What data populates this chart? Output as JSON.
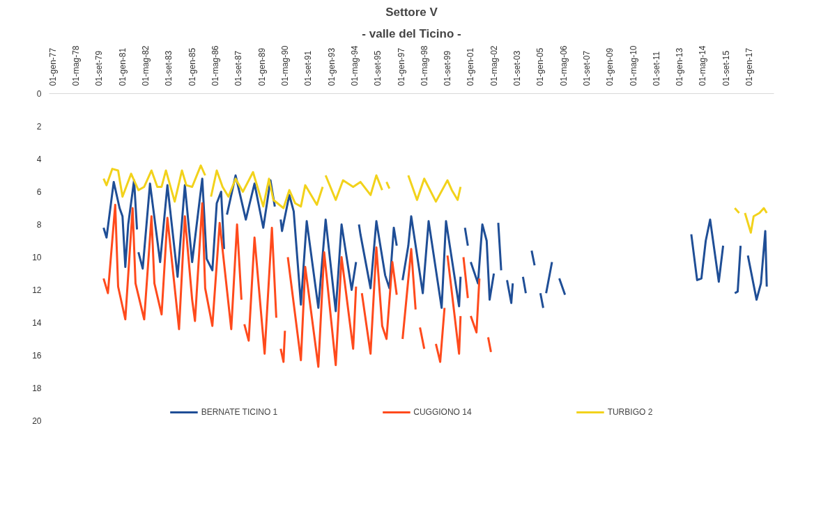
{
  "chart_data": {
    "type": "line",
    "title": "Settore V",
    "subtitle": "- valle del Ticino -",
    "xlim": [
      "1976-10-15",
      "2018-06-01"
    ],
    "xticks": [
      {
        "value": "1977-01-01",
        "label": "01-gen-77"
      },
      {
        "value": "1978-05-01",
        "label": "01-mag-78"
      },
      {
        "value": "1979-09-01",
        "label": "01-set-79"
      },
      {
        "value": "1981-01-01",
        "label": "01-gen-81"
      },
      {
        "value": "1982-05-01",
        "label": "01-mag-82"
      },
      {
        "value": "1983-09-01",
        "label": "01-set-83"
      },
      {
        "value": "1985-01-01",
        "label": "01-gen-85"
      },
      {
        "value": "1986-05-01",
        "label": "01-mag-86"
      },
      {
        "value": "1987-09-01",
        "label": "01-set-87"
      },
      {
        "value": "1989-01-01",
        "label": "01-gen-89"
      },
      {
        "value": "1990-05-01",
        "label": "01-mag-90"
      },
      {
        "value": "1991-09-01",
        "label": "01-set-91"
      },
      {
        "value": "1993-01-01",
        "label": "01-gen-93"
      },
      {
        "value": "1994-05-01",
        "label": "01-mag-94"
      },
      {
        "value": "1995-09-01",
        "label": "01-set-95"
      },
      {
        "value": "1997-01-01",
        "label": "01-gen-97"
      },
      {
        "value": "1998-05-01",
        "label": "01-mag-98"
      },
      {
        "value": "1999-09-01",
        "label": "01-set-99"
      },
      {
        "value": "2001-01-01",
        "label": "01-gen-01"
      },
      {
        "value": "2002-05-01",
        "label": "01-mag-02"
      },
      {
        "value": "2003-09-01",
        "label": "01-set-03"
      },
      {
        "value": "2005-01-01",
        "label": "01-gen-05"
      },
      {
        "value": "2006-05-01",
        "label": "01-mag-06"
      },
      {
        "value": "2007-09-01",
        "label": "01-set-07"
      },
      {
        "value": "2009-01-01",
        "label": "01-gen-09"
      },
      {
        "value": "2010-05-01",
        "label": "01-mag-10"
      },
      {
        "value": "2011-09-01",
        "label": "01-set-11"
      },
      {
        "value": "2013-01-01",
        "label": "01-gen-13"
      },
      {
        "value": "2014-05-01",
        "label": "01-mag-14"
      },
      {
        "value": "2015-09-01",
        "label": "01-set-15"
      },
      {
        "value": "2017-01-01",
        "label": "01-gen-17"
      }
    ],
    "ylim": [
      20,
      0
    ],
    "yticks": [
      0,
      2,
      4,
      6,
      8,
      10,
      12,
      14,
      16,
      18,
      20
    ],
    "grid": false,
    "legend": "bottom",
    "marker": "none",
    "line_style": "solid",
    "series": [
      {
        "name": "BERNATE TICINO 1",
        "color": "#1f4e96",
        "x": [
          "1979-12",
          "1980-02",
          "1980-07",
          "1980-11",
          "1981-01",
          "1981-03",
          "1981-05",
          "1981-09",
          "1981-11",
          "1981-11-20",
          "1981-12",
          "1982-03",
          "1982-08",
          "1983-03",
          "1983-08",
          "1984-03",
          "1984-08",
          "1985-01",
          "1985-08",
          "1985-11",
          "1986-03",
          "1986-06",
          "1986-09",
          "1986-11",
          "1986-12",
          "1987-01",
          "1987-07",
          "1988-02",
          "1988-08",
          "1989-02",
          "1989-07",
          "1989-10",
          "1989-12",
          "1990-02",
          "1990-03",
          "1990-08",
          "1990-11",
          "1991-04",
          "1991-08",
          "1992-04",
          "1992-09",
          "1993-04",
          "1993-08",
          "1994-03",
          "1994-06",
          "1994-07",
          "1994-08",
          "1994-09",
          "1995-04",
          "1995-08",
          "1996-02",
          "1996-05",
          "1996-08",
          "1996-10",
          "1996-12",
          "1997-02",
          "1997-06",
          "1997-08",
          "1998-04",
          "1998-08",
          "1999-05",
          "1999-08",
          "2000-05",
          "2000-06",
          "2000-07",
          "2000-09",
          "2000-11",
          "2000-12",
          "2001-01",
          "2001-06",
          "2001-09",
          "2001-12",
          "2002-02",
          "2002-05",
          "2002-06",
          "2002-08",
          "2002-10",
          "2002-12",
          "2003-02",
          "2003-05",
          "2003-06",
          "2003-10",
          "2004-01",
          "2004-03",
          "2004-05",
          "2004-07",
          "2004-09",
          "2004-11",
          "2005-01",
          "2005-03",
          "2005-04",
          "2005-05",
          "2005-09",
          "2005-12",
          "2006-02",
          "2006-06",
          "2010-01",
          "2013-09",
          "2014-01",
          "2014-04",
          "2014-07",
          "2014-10",
          "2015-04",
          "2015-07",
          "2015-10",
          "2016-03",
          "2016-05",
          "2016-07",
          "2016-09",
          "2016-12",
          "2017-06",
          "2017-09",
          "2017-12",
          "2018-01"
        ],
        "values": [
          8.2,
          8.8,
          5.4,
          7.0,
          7.5,
          10.6,
          8.0,
          5.3,
          8.3,
          null,
          9.7,
          10.7,
          5.5,
          10.3,
          5.6,
          11.2,
          5.6,
          10.3,
          5.2,
          10.1,
          10.8,
          6.7,
          6.0,
          9.5,
          null,
          7.4,
          5.0,
          7.7,
          5.5,
          8.2,
          5.3,
          6.9,
          null,
          7.7,
          8.4,
          6.2,
          7.2,
          12.9,
          7.8,
          13.1,
          7.7,
          13.3,
          8.0,
          12.0,
          10.3,
          null,
          8.0,
          8.6,
          11.9,
          7.8,
          11.1,
          11.9,
          8.2,
          9.3,
          null,
          11.4,
          9.3,
          7.5,
          12.2,
          7.8,
          13.1,
          7.8,
          13.0,
          11.2,
          null,
          8.2,
          9.3,
          null,
          10.3,
          11.6,
          8.0,
          9.0,
          12.6,
          11.0,
          null,
          7.9,
          10.8,
          null,
          11.4,
          12.8,
          11.6,
          null,
          11.2,
          12.2,
          null,
          9.6,
          10.5,
          null,
          12.2,
          13.1,
          null,
          12.2,
          10.3,
          null,
          11.3,
          12.3,
          null,
          8.6,
          11.4,
          11.3,
          9.0,
          7.7,
          11.5,
          9.3,
          null,
          12.2,
          12.1,
          9.3,
          null,
          9.9,
          12.6,
          11.6,
          8.4,
          11.8
        ]
      },
      {
        "name": "CUGGIONO 14",
        "color": "#ff4a1c",
        "x": [
          "1979-12",
          "1980-03",
          "1980-08",
          "1980-10",
          "1981-03",
          "1981-08",
          "1981-10",
          "1982-04",
          "1982-09",
          "1982-11",
          "1983-04",
          "1983-08",
          "1984-04",
          "1984-08",
          "1985-01",
          "1985-03",
          "1985-08",
          "1985-10",
          "1986-03",
          "1986-08",
          "1987-04",
          "1987-08",
          "1987-11",
          "1987-12",
          "1988-01",
          "1988-04",
          "1988-08",
          "1989-03",
          "1989-08",
          "1989-11",
          "1989-12",
          "1990-02",
          "1990-04",
          "1990-05",
          "1990-06",
          "1990-07",
          "1991-04",
          "1991-07",
          "1992-04",
          "1992-08",
          "1993-04",
          "1993-08",
          "1994-04",
          "1994-06",
          "1994-08",
          "1994-10",
          "1995-04",
          "1995-08",
          "1995-12",
          "1996-03",
          "1996-07",
          "1996-10",
          "1996-12",
          "1997-02",
          "1997-08",
          "1997-11",
          "1997-12",
          "1998-02",
          "1998-05",
          "1998-09",
          "1999-01",
          "1999-04",
          "1999-07",
          "1999-08",
          "1999-09",
          "2000-05",
          "2000-06",
          "2000-07",
          "2000-08",
          "2000-11",
          "2000-12",
          "2001-01",
          "2001-05",
          "2001-07",
          "2001-10",
          "2002-01",
          "2002-03"
        ],
        "values": [
          11.3,
          12.2,
          6.8,
          11.8,
          13.8,
          7.0,
          11.6,
          13.8,
          7.5,
          11.6,
          13.5,
          7.6,
          14.4,
          7.5,
          12.6,
          13.9,
          6.7,
          11.9,
          14.2,
          7.9,
          14.4,
          8.0,
          12.6,
          null,
          14.1,
          15.1,
          8.8,
          15.9,
          8.2,
          13.7,
          null,
          15.6,
          16.4,
          14.5,
          null,
          10.0,
          16.3,
          10.6,
          16.7,
          9.7,
          16.6,
          10.0,
          15.6,
          11.8,
          null,
          12.2,
          15.9,
          9.4,
          14.2,
          15.0,
          10.3,
          12.3,
          null,
          15.0,
          9.5,
          13.2,
          null,
          14.3,
          15.6,
          null,
          15.3,
          16.4,
          13.1,
          null,
          9.9,
          15.9,
          13.6,
          null,
          10.0,
          12.5,
          null,
          13.6,
          14.6,
          11.3,
          null,
          14.9,
          15.8
        ]
      },
      {
        "name": "TURBIGO 2",
        "color": "#f2d21b",
        "x": [
          "1979-12",
          "1980-02",
          "1980-06",
          "1980-10",
          "1981-01",
          "1981-07",
          "1981-12",
          "1982-04",
          "1982-09",
          "1983-01",
          "1983-04",
          "1983-07",
          "1984-01",
          "1984-06",
          "1984-09",
          "1985-01",
          "1985-07",
          "1985-10",
          "1985-12",
          "1986-02",
          "1986-06",
          "1986-10",
          "1987-02",
          "1987-07",
          "1987-12",
          "1988-07",
          "1989-02",
          "1989-06",
          "1989-09",
          "1990-04",
          "1990-08",
          "1990-12",
          "1991-04",
          "1991-07",
          "1992-03",
          "1992-07",
          "1992-08",
          "1992-09",
          "1993-04",
          "1993-09",
          "1994-04",
          "1994-09",
          "1995-04",
          "1995-08",
          "1995-12",
          "1996-01",
          "1996-03",
          "1996-05",
          "1996-09",
          "1997-06",
          "1997-12",
          "1998-05",
          "1999-01",
          "1999-09",
          "1999-12",
          "2000-04",
          "2000-06",
          "2008-01",
          "2016-03",
          "2016-06",
          "2016-08",
          "2016-10",
          "2017-02",
          "2017-04",
          "2017-08",
          "2017-11",
          "2018-01"
        ],
        "values": [
          5.2,
          5.6,
          4.6,
          4.7,
          6.3,
          4.9,
          5.9,
          5.7,
          4.7,
          5.7,
          5.7,
          4.7,
          6.6,
          4.7,
          5.6,
          5.7,
          4.4,
          5.0,
          null,
          6.3,
          4.7,
          5.7,
          6.3,
          5.2,
          6.0,
          4.8,
          6.9,
          5.2,
          6.5,
          7.0,
          5.9,
          6.7,
          6.9,
          5.6,
          6.8,
          5.7,
          null,
          5.0,
          6.5,
          5.3,
          5.7,
          5.4,
          6.2,
          5.0,
          5.9,
          null,
          5.4,
          5.8,
          null,
          5.0,
          6.5,
          5.2,
          6.6,
          5.3,
          5.9,
          6.5,
          5.7,
          null,
          7.0,
          7.3,
          null,
          7.3,
          8.5,
          7.5,
          7.3,
          7.0,
          7.3
        ]
      }
    ]
  }
}
